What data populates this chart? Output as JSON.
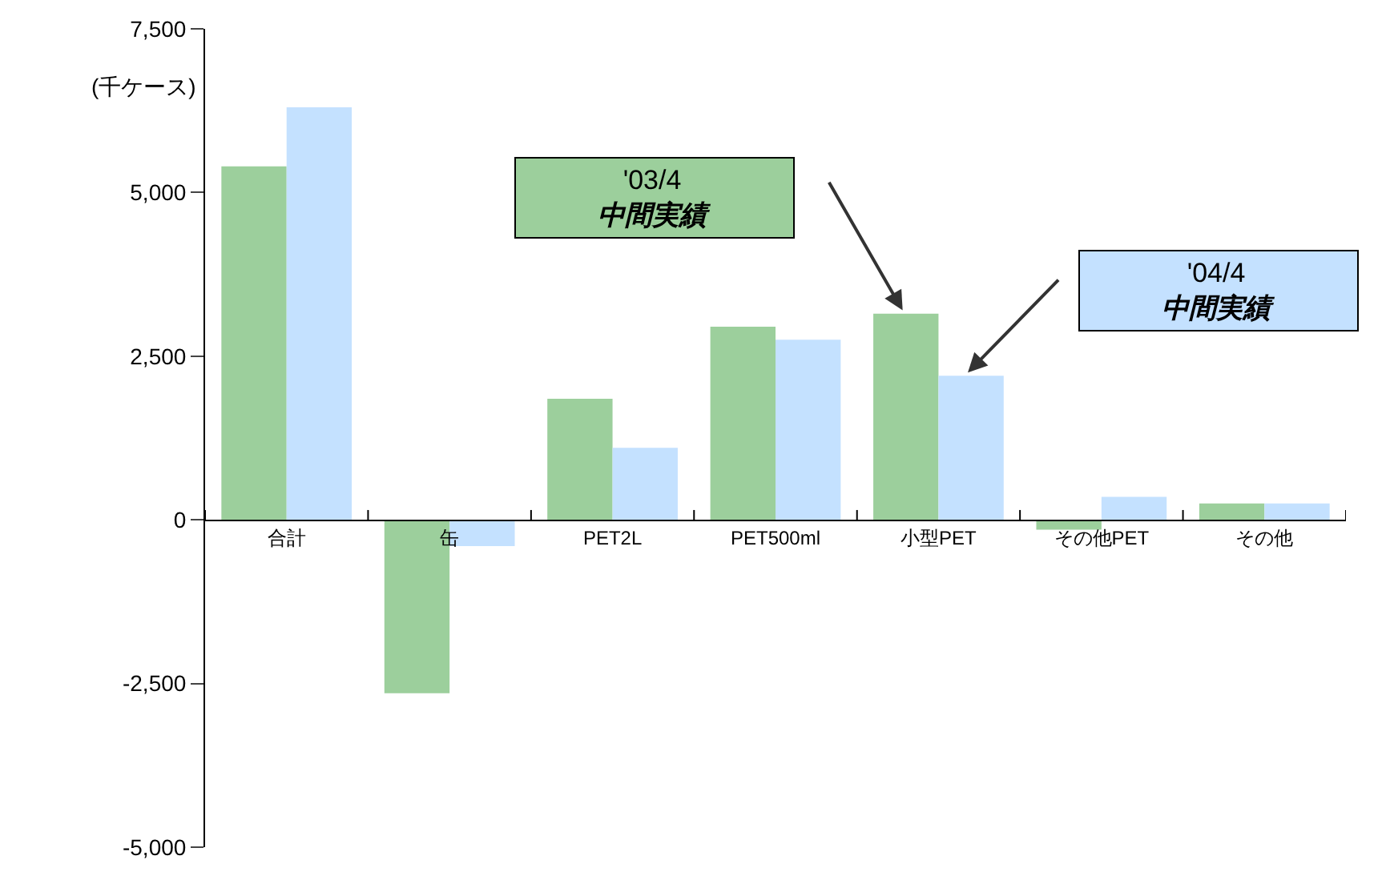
{
  "chart_data": {
    "type": "bar",
    "ylabel": "(千ケース)",
    "categories": [
      "合計",
      "缶",
      "PET2L",
      "PET500ml",
      "小型PET",
      "その他PET",
      "その他"
    ],
    "series": [
      {
        "name": "'03/4 中間実績",
        "color": "#9ccf9c",
        "values": [
          5400,
          -2650,
          1850,
          2950,
          3150,
          -150,
          250
        ]
      },
      {
        "name": "'04/4 中間実績",
        "color": "#c4e1ff",
        "values": [
          6300,
          -400,
          1100,
          2750,
          2200,
          350,
          250
        ]
      }
    ],
    "ylim": [
      -5000,
      7500
    ],
    "yticks": [
      {
        "value": -5000,
        "label": "-5,000"
      },
      {
        "value": -2500,
        "label": "-2,500"
      },
      0,
      {
        "value": 2500,
        "label": "2,500"
      },
      {
        "value": 5000,
        "label": "5,000"
      },
      {
        "value": 7500,
        "label": "7,500"
      }
    ],
    "legend": false
  }
}
